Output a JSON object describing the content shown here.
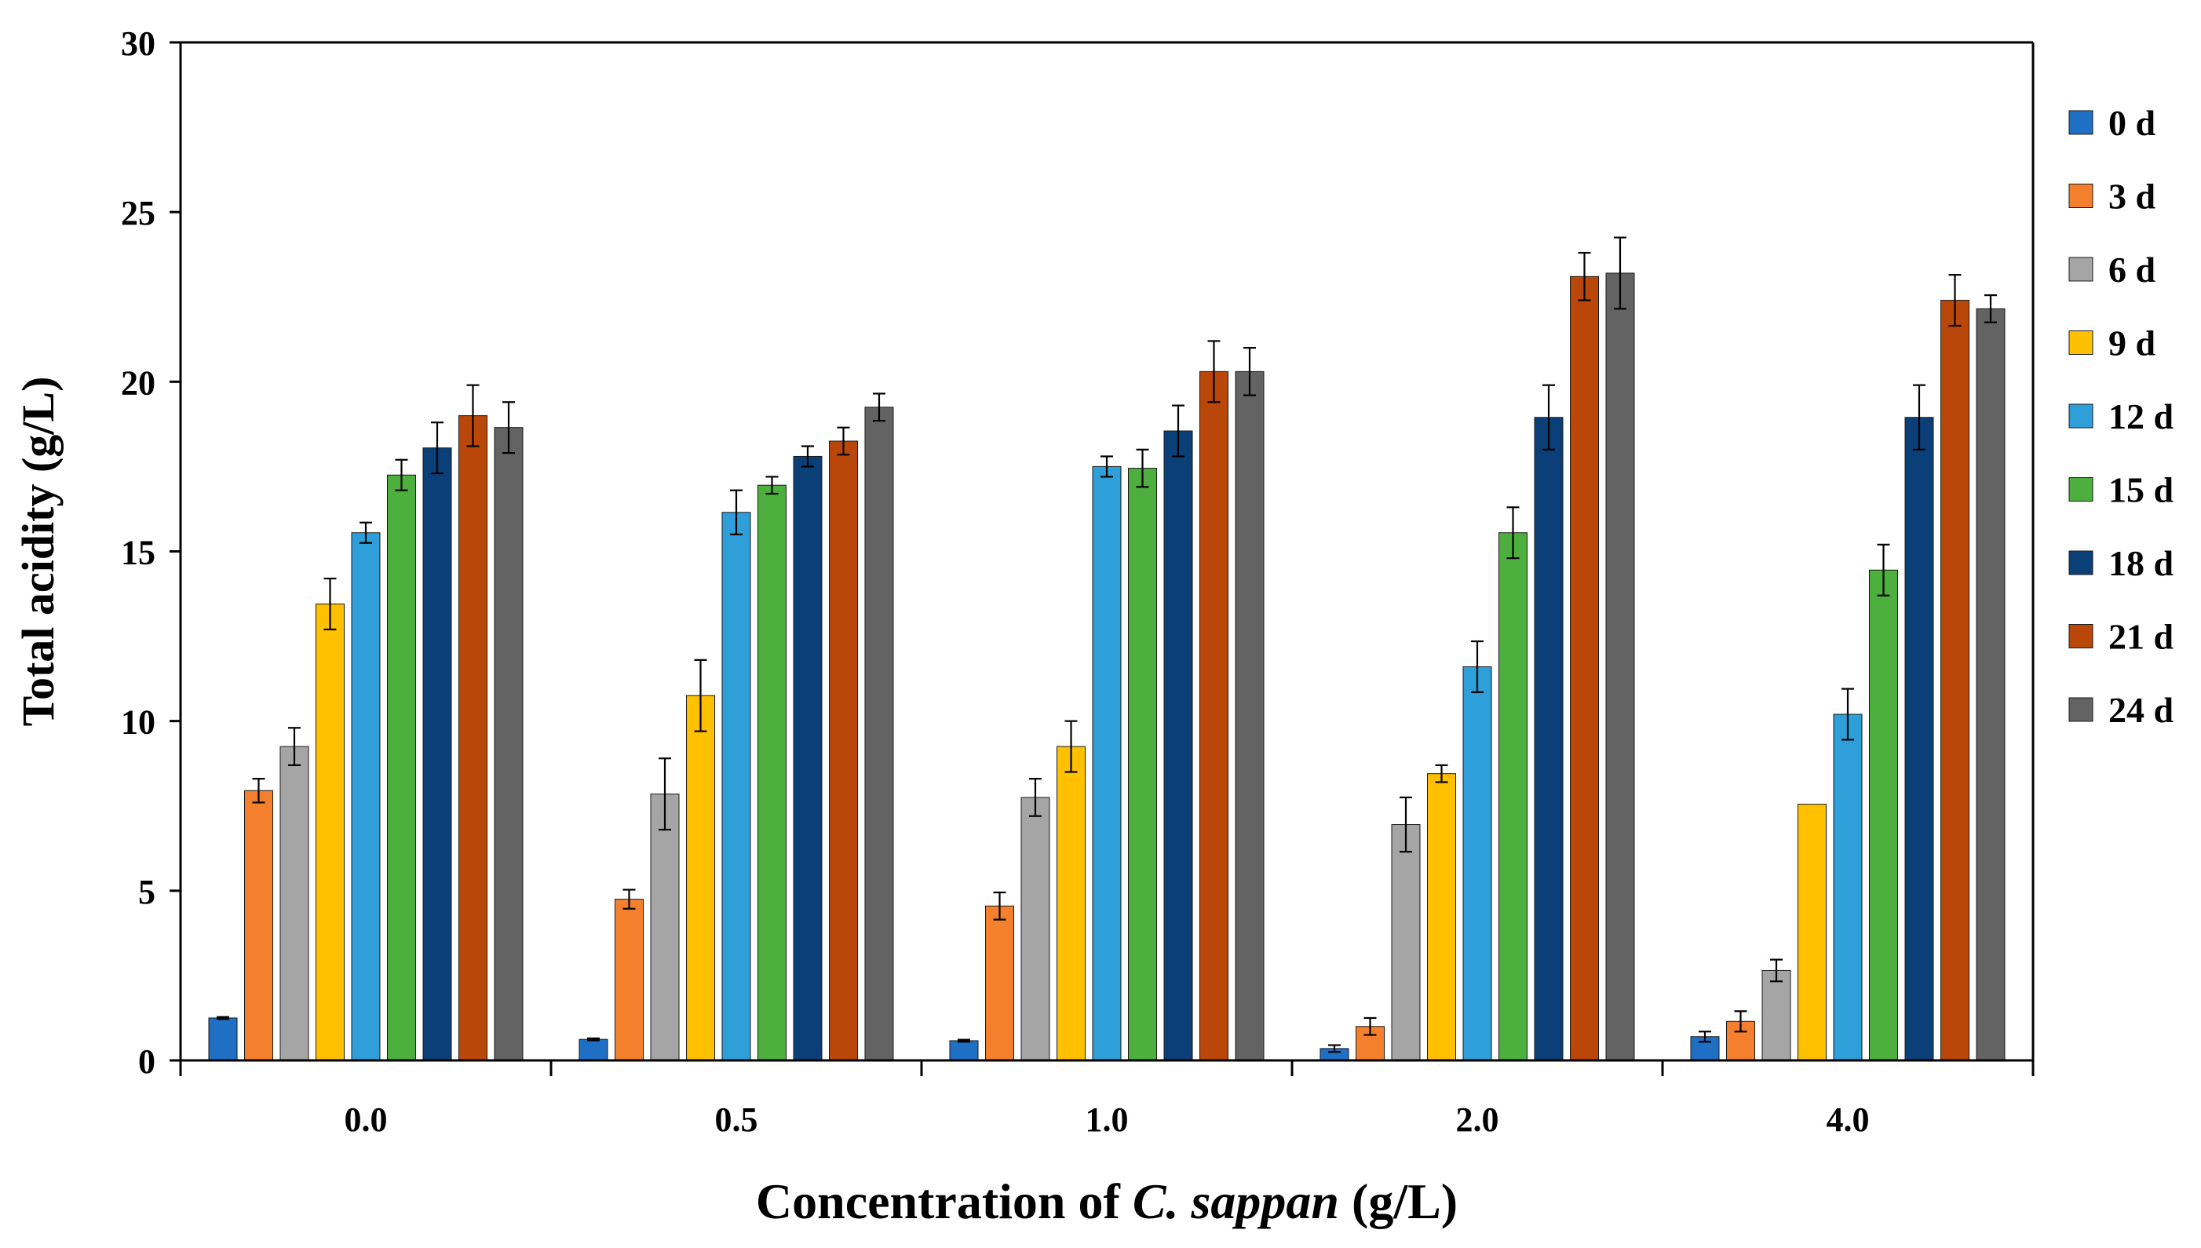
{
  "chart_data": {
    "type": "bar",
    "xlabel_prefix": "Concentration of ",
    "xlabel_italic": "C. sappan",
    "xlabel_suffix": " (g/L)",
    "ylabel": "Total acidity (g/L)",
    "ylim": [
      0,
      30
    ],
    "yticks": [
      "0",
      "5",
      "10",
      "15",
      "20",
      "25",
      "30"
    ],
    "grid": false,
    "legend_position": "right",
    "categories": [
      "0.0",
      "0.5",
      "1.0",
      "2.0",
      "4.0"
    ],
    "series": [
      {
        "name": "0 d",
        "color": "#1f6fc5",
        "values": [
          1.25,
          0.62,
          0.58,
          0.35,
          0.7
        ],
        "errors": [
          0.03,
          0.03,
          0.03,
          0.1,
          0.15
        ]
      },
      {
        "name": "3 d",
        "color": "#f4802e",
        "values": [
          7.95,
          4.75,
          4.55,
          1.0,
          1.15
        ],
        "errors": [
          0.35,
          0.28,
          0.4,
          0.25,
          0.3
        ]
      },
      {
        "name": "6 d",
        "color": "#a5a5a5",
        "values": [
          9.25,
          7.85,
          7.75,
          6.95,
          2.65
        ],
        "errors": [
          0.55,
          1.05,
          0.55,
          0.8,
          0.32
        ]
      },
      {
        "name": "9 d",
        "color": "#ffc000",
        "values": [
          13.45,
          10.75,
          9.25,
          8.45,
          7.55
        ],
        "errors": [
          0.75,
          1.05,
          0.75,
          0.25,
          0.0
        ]
      },
      {
        "name": "12 d",
        "color": "#2e9fd9",
        "values": [
          15.55,
          16.15,
          17.5,
          11.6,
          10.2
        ],
        "errors": [
          0.3,
          0.65,
          0.3,
          0.75,
          0.75
        ]
      },
      {
        "name": "15 d",
        "color": "#4caf3e",
        "values": [
          17.25,
          16.95,
          17.45,
          15.55,
          14.45
        ],
        "errors": [
          0.45,
          0.25,
          0.55,
          0.75,
          0.75
        ]
      },
      {
        "name": "18 d",
        "color": "#0b3f78",
        "values": [
          18.05,
          17.8,
          18.55,
          18.95,
          18.95
        ],
        "errors": [
          0.75,
          0.3,
          0.75,
          0.95,
          0.95
        ]
      },
      {
        "name": "21 d",
        "color": "#b9470a",
        "values": [
          19.0,
          18.25,
          20.3,
          23.1,
          22.4
        ],
        "errors": [
          0.9,
          0.4,
          0.9,
          0.7,
          0.75
        ]
      },
      {
        "name": "24 d",
        "color": "#636363",
        "values": [
          18.65,
          19.25,
          20.3,
          23.2,
          22.15
        ],
        "errors": [
          0.75,
          0.4,
          0.7,
          1.05,
          0.4
        ]
      }
    ]
  }
}
